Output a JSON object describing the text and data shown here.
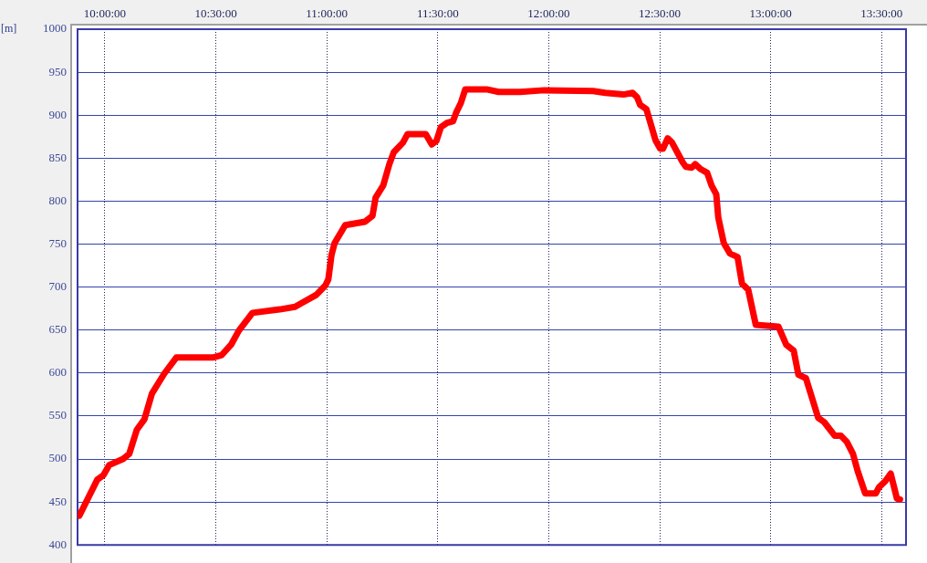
{
  "chart_data": {
    "type": "line",
    "ylabel": "[m]",
    "xlim": [
      9.877,
      13.61
    ],
    "xticks": [
      {
        "value": 10,
        "label": "10:00:00"
      },
      {
        "value": 10.5,
        "label": "10:30:00"
      },
      {
        "value": 11,
        "label": "11:00:00"
      },
      {
        "value": 11.5,
        "label": "11:30:00"
      },
      {
        "value": 12,
        "label": "12:00:00"
      },
      {
        "value": 12.5,
        "label": "12:30:00"
      },
      {
        "value": 13,
        "label": "13:00:00"
      },
      {
        "value": 13.5,
        "label": "13:30:00"
      }
    ],
    "ylim": [
      400,
      1000
    ],
    "yticks": [
      400,
      450,
      500,
      550,
      600,
      650,
      700,
      750,
      800,
      850,
      900,
      950,
      1000
    ],
    "grid": true,
    "x": [
      9.885,
      9.966,
      9.993,
      10.02,
      10.082,
      10.11,
      10.144,
      10.178,
      10.212,
      10.267,
      10.322,
      10.486,
      10.527,
      10.569,
      10.603,
      10.665,
      10.788,
      10.857,
      10.884,
      10.953,
      10.994,
      11.007,
      11.021,
      11.035,
      11.083,
      11.172,
      11.206,
      11.22,
      11.254,
      11.282,
      11.302,
      11.343,
      11.364,
      11.446,
      11.473,
      11.494,
      11.514,
      11.542,
      11.569,
      11.583,
      11.604,
      11.624,
      11.72,
      11.775,
      11.871,
      11.98,
      12.2,
      12.255,
      12.337,
      12.378,
      12.398,
      12.412,
      12.44,
      12.481,
      12.502,
      12.515,
      12.536,
      12.556,
      12.604,
      12.618,
      12.645,
      12.66,
      12.686,
      12.714,
      12.734,
      12.755,
      12.764,
      12.789,
      12.817,
      12.851,
      12.871,
      12.899,
      12.933,
      13.035,
      13.07,
      13.104,
      13.125,
      13.159,
      13.214,
      13.241,
      13.289,
      13.317,
      13.343,
      13.371,
      13.392,
      13.426,
      13.474,
      13.488,
      13.516,
      13.541,
      13.569,
      13.583
    ],
    "series": [
      {
        "color": "#ff0000",
        "values": [
          434,
          476,
          481,
          493,
          500,
          506,
          534,
          546,
          576,
          599,
          618,
          618,
          621,
          633,
          649,
          670,
          674,
          677,
          681,
          691,
          702,
          709,
          737,
          751,
          772,
          776,
          783,
          804,
          818,
          843,
          857,
          868,
          878,
          878,
          866,
          870,
          886,
          891,
          893,
          903,
          914,
          930,
          930,
          927,
          927,
          929,
          928,
          926,
          924,
          926,
          921,
          912,
          907,
          871,
          861,
          861,
          873,
          868,
          845,
          840,
          839,
          843,
          837,
          833,
          818,
          808,
          781,
          751,
          739,
          735,
          704,
          697,
          656,
          654,
          633,
          626,
          598,
          594,
          548,
          543,
          527,
          527,
          520,
          506,
          486,
          460,
          460,
          467,
          474,
          483,
          454,
          453
        ]
      }
    ]
  }
}
